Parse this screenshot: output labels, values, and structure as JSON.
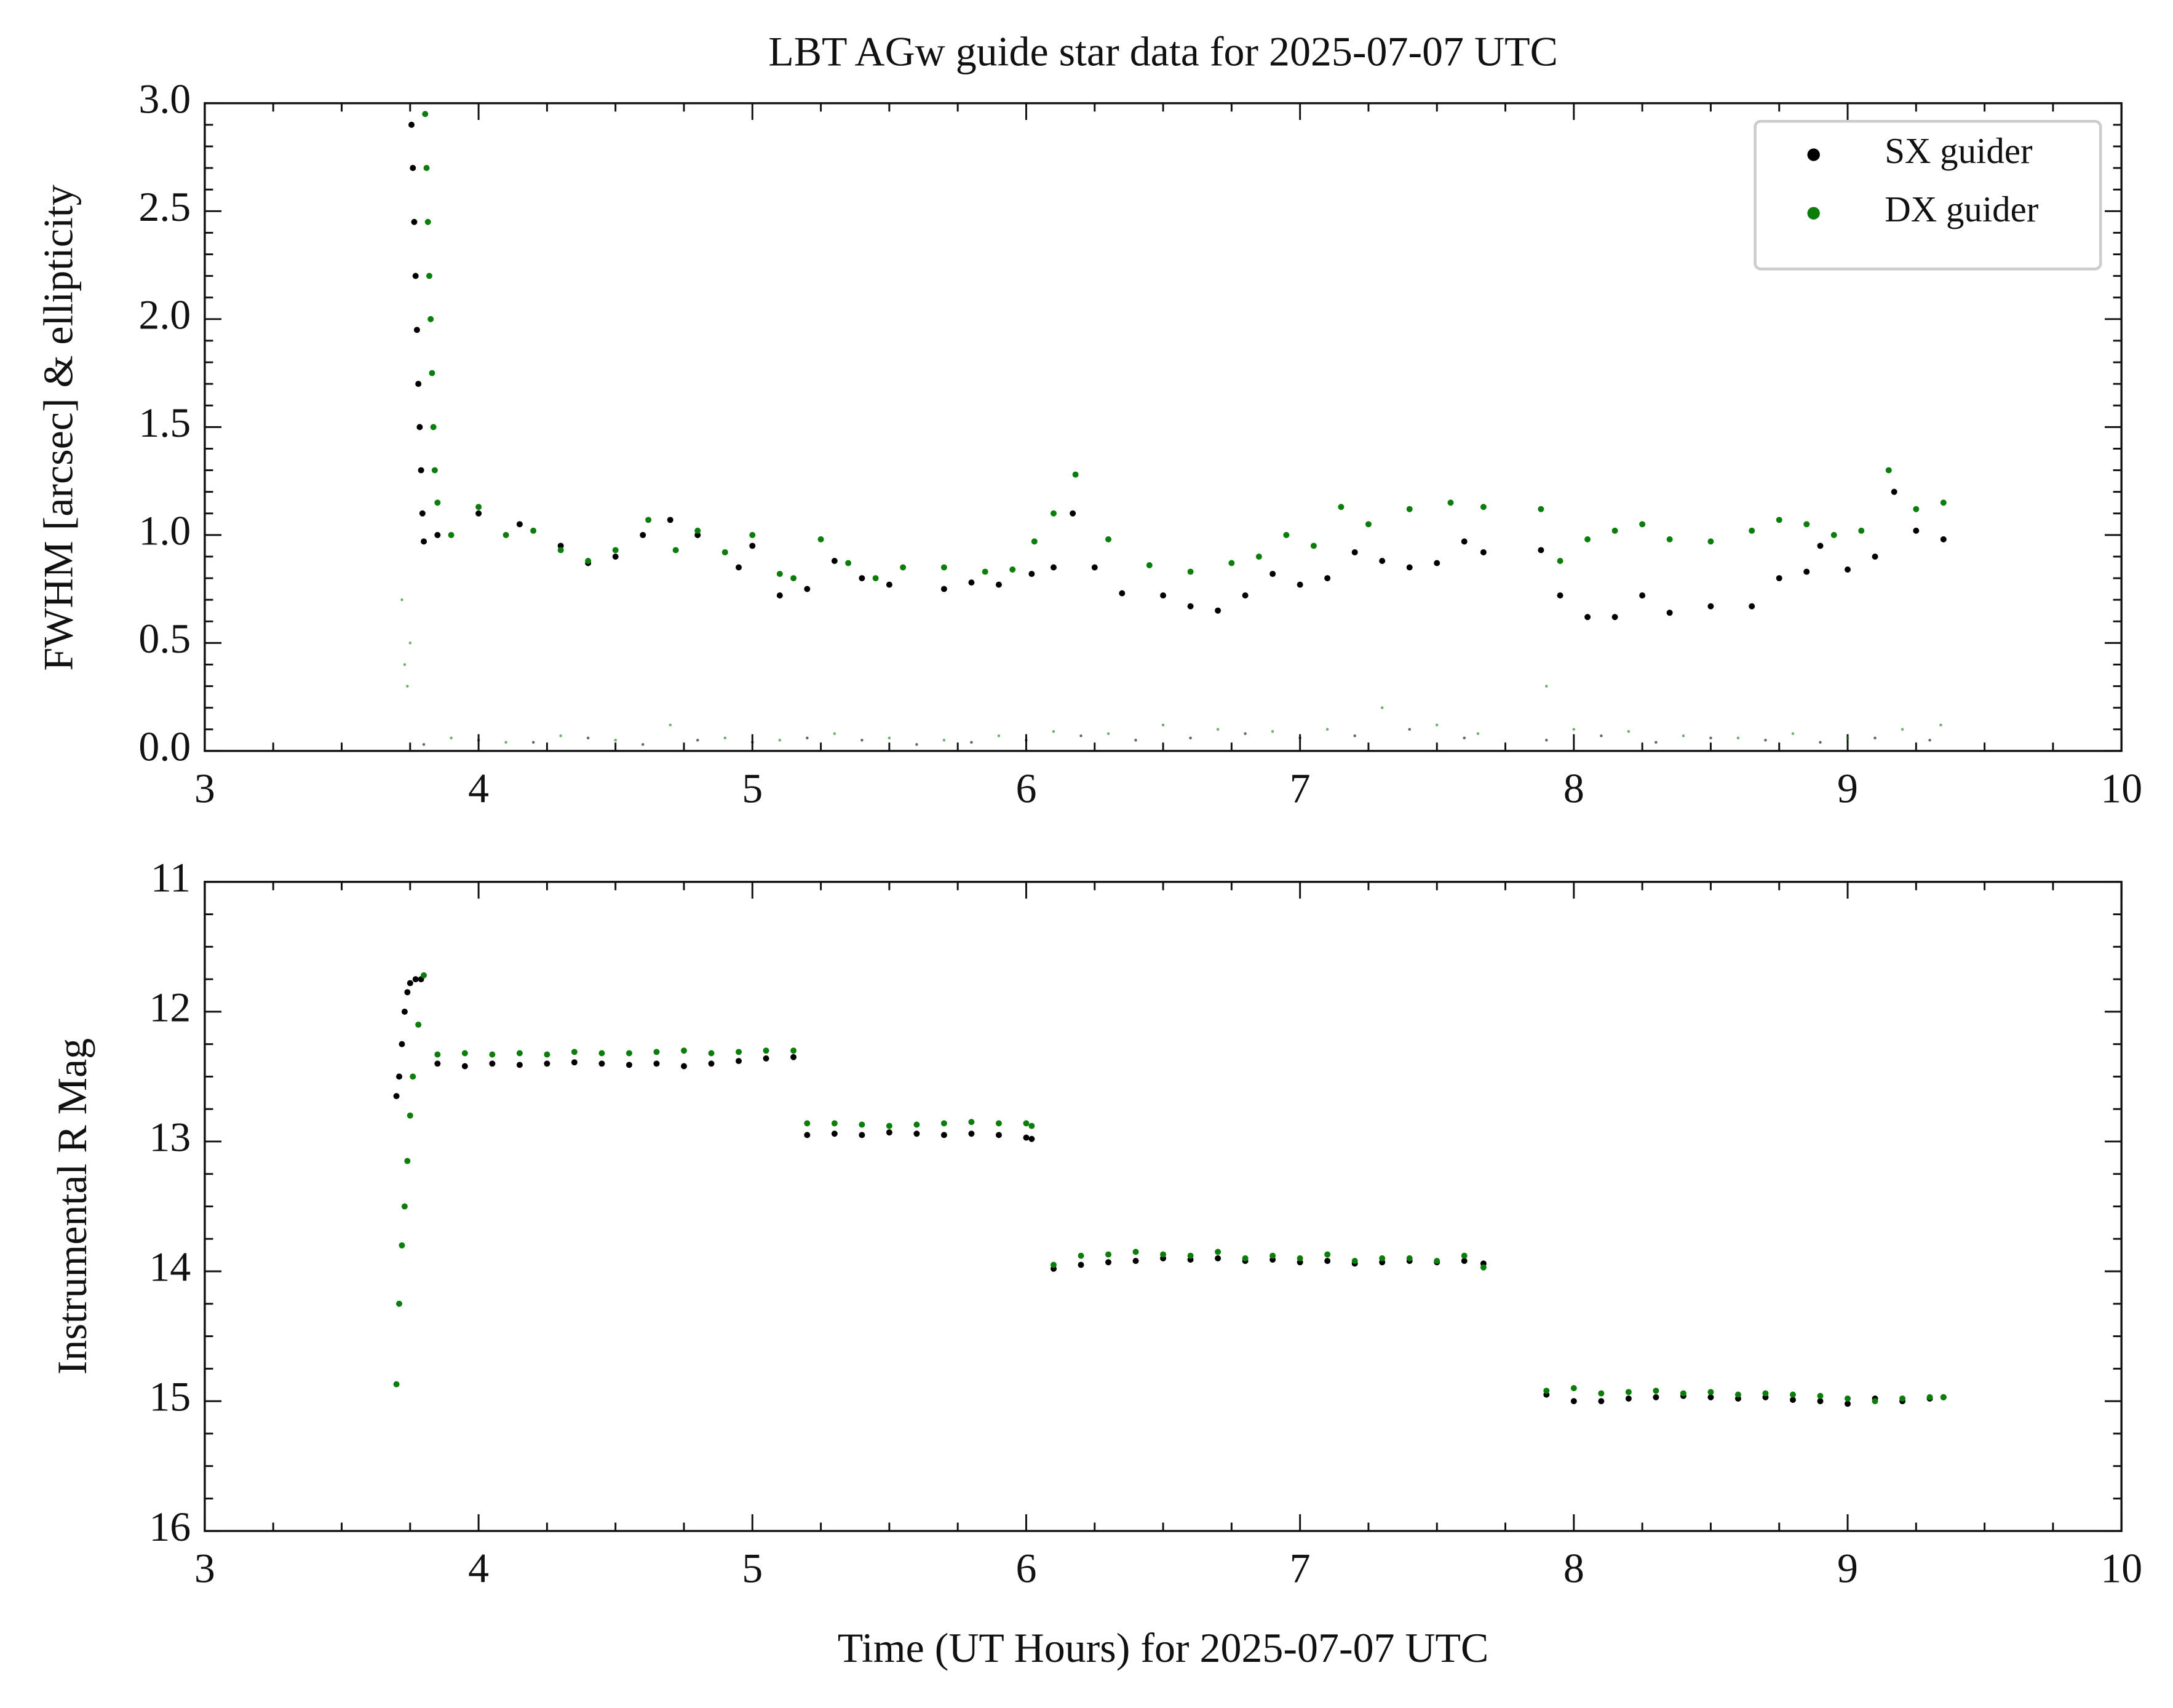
{
  "chart_data": [
    {
      "type": "scatter",
      "title": "LBT AGw guide star data for 2025-07-07 UTC",
      "ylabel": "FWHM [arcsec] & ellipticity",
      "xlim": [
        3,
        10
      ],
      "xticks": [
        3,
        4,
        5,
        6,
        7,
        8,
        9,
        10
      ],
      "ylim": [
        0,
        3
      ],
      "yticks": [
        {
          "value": 0,
          "label": "0.0"
        },
        0.5,
        {
          "value": 1,
          "label": "1.0"
        },
        1.5,
        {
          "value": 2,
          "label": "2.0"
        },
        2.5,
        {
          "value": 3,
          "label": "3.0"
        }
      ],
      "minor_ticks": true,
      "legend": "upper right",
      "series": [
        {
          "name": "SX guider",
          "color": "#000000",
          "marker": "dot",
          "x": [
            3.755,
            3.76,
            3.765,
            3.77,
            3.775,
            3.78,
            3.785,
            3.79,
            3.795,
            3.8,
            3.85,
            4.0,
            4.15,
            4.3,
            4.4,
            4.5,
            4.6,
            4.7,
            4.8,
            4.95,
            5.0,
            5.1,
            5.2,
            5.3,
            5.4,
            5.5,
            5.7,
            5.8,
            5.9,
            6.02,
            6.1,
            6.17,
            6.25,
            6.35,
            6.5,
            6.6,
            6.7,
            6.8,
            6.9,
            7.0,
            7.1,
            7.2,
            7.3,
            7.4,
            7.5,
            7.6,
            7.67,
            7.88,
            7.95,
            8.05,
            8.15,
            8.25,
            8.35,
            8.5,
            8.65,
            8.75,
            8.85,
            8.9,
            9.0,
            9.1,
            9.17,
            9.25,
            9.35
          ],
          "values": [
            2.9,
            2.7,
            2.45,
            2.2,
            1.95,
            1.7,
            1.5,
            1.3,
            1.1,
            0.97,
            1.0,
            1.1,
            1.05,
            0.95,
            0.87,
            0.9,
            1.0,
            1.07,
            1.0,
            0.85,
            0.95,
            0.72,
            0.75,
            0.88,
            0.8,
            0.77,
            0.75,
            0.78,
            0.77,
            0.82,
            0.85,
            1.1,
            0.85,
            0.73,
            0.72,
            0.67,
            0.65,
            0.72,
            0.82,
            0.77,
            0.8,
            0.92,
            0.88,
            0.85,
            0.87,
            0.97,
            0.92,
            0.93,
            0.72,
            0.62,
            0.62,
            0.72,
            0.64,
            0.67,
            0.67,
            0.8,
            0.83,
            0.95,
            0.84,
            0.9,
            1.2,
            1.02,
            0.98
          ]
        },
        {
          "name": "DX guider",
          "color": "#0a7d0a",
          "marker": "dot",
          "x": [
            3.805,
            3.81,
            3.815,
            3.82,
            3.825,
            3.83,
            3.835,
            3.84,
            3.85,
            3.9,
            4.0,
            4.1,
            4.2,
            4.3,
            4.4,
            4.5,
            4.62,
            4.72,
            4.8,
            4.9,
            5.0,
            5.1,
            5.15,
            5.25,
            5.35,
            5.45,
            5.55,
            5.7,
            5.85,
            5.95,
            6.03,
            6.1,
            6.18,
            6.3,
            6.45,
            6.6,
            6.75,
            6.85,
            6.95,
            7.05,
            7.15,
            7.25,
            7.4,
            7.55,
            7.67,
            7.88,
            7.95,
            8.05,
            8.15,
            8.25,
            8.35,
            8.5,
            8.65,
            8.75,
            8.85,
            8.95,
            9.05,
            9.15,
            9.25,
            9.35
          ],
          "values": [
            2.95,
            2.7,
            2.45,
            2.2,
            2.0,
            1.75,
            1.5,
            1.3,
            1.15,
            1.0,
            1.13,
            1.0,
            1.02,
            0.93,
            0.88,
            0.93,
            1.07,
            0.93,
            1.02,
            0.92,
            1.0,
            0.82,
            0.8,
            0.98,
            0.87,
            0.8,
            0.85,
            0.85,
            0.83,
            0.84,
            0.97,
            1.1,
            1.28,
            0.98,
            0.86,
            0.83,
            0.87,
            0.9,
            1.0,
            0.95,
            1.13,
            1.05,
            1.12,
            1.15,
            1.13,
            1.12,
            0.88,
            0.98,
            1.02,
            1.05,
            0.98,
            0.97,
            1.02,
            1.07,
            1.05,
            1.0,
            1.02,
            1.3,
            1.12,
            1.15
          ]
        },
        {
          "color": "#000000",
          "marker": "tiny",
          "x": [
            3.8,
            4.0,
            4.2,
            4.4,
            4.6,
            4.8,
            5.0,
            5.2,
            5.4,
            5.6,
            5.8,
            6.0,
            6.2,
            6.4,
            6.6,
            6.8,
            7.0,
            7.2,
            7.4,
            7.6,
            7.9,
            8.1,
            8.3,
            8.5,
            8.7,
            8.9,
            9.1,
            9.3
          ],
          "values": [
            0.03,
            0.05,
            0.04,
            0.06,
            0.03,
            0.05,
            0.04,
            0.06,
            0.05,
            0.03,
            0.04,
            0.05,
            0.07,
            0.05,
            0.06,
            0.08,
            0.06,
            0.07,
            0.1,
            0.06,
            0.05,
            0.07,
            0.04,
            0.06,
            0.05,
            0.04,
            0.06,
            0.05
          ]
        },
        {
          "color": "#0a7d0a",
          "marker": "tiny",
          "x": [
            3.72,
            3.73,
            3.74,
            3.75,
            3.9,
            4.1,
            4.3,
            4.5,
            4.7,
            4.9,
            5.1,
            5.3,
            5.5,
            5.7,
            5.9,
            6.1,
            6.3,
            6.5,
            6.7,
            6.9,
            7.1,
            7.3,
            7.5,
            7.65,
            7.9,
            8.0,
            8.2,
            8.4,
            8.6,
            8.8,
            9.0,
            9.2,
            9.34
          ],
          "values": [
            0.7,
            0.4,
            0.3,
            0.5,
            0.06,
            0.04,
            0.07,
            0.05,
            0.12,
            0.06,
            0.05,
            0.08,
            0.06,
            0.05,
            0.07,
            0.09,
            0.08,
            0.12,
            0.1,
            0.09,
            0.1,
            0.2,
            0.12,
            0.08,
            0.3,
            0.1,
            0.09,
            0.07,
            0.06,
            0.08,
            0.06,
            0.1,
            0.12
          ]
        }
      ]
    },
    {
      "type": "scatter",
      "xlabel": "Time (UT Hours) for 2025-07-07 UTC",
      "ylabel": "Instrumental R Mag",
      "xlim": [
        3,
        10
      ],
      "xticks": [
        3,
        4,
        5,
        6,
        7,
        8,
        9,
        10
      ],
      "ylim": [
        11,
        16
      ],
      "yticks": [
        11,
        12,
        13,
        14,
        15,
        16
      ],
      "y_inverted": true,
      "minor_ticks": true,
      "series": [
        {
          "name": "SX guider",
          "color": "#000000",
          "marker": "dot",
          "x": [
            3.7,
            3.71,
            3.72,
            3.73,
            3.74,
            3.75,
            3.77,
            3.79,
            3.85,
            3.95,
            4.05,
            4.15,
            4.25,
            4.35,
            4.45,
            4.55,
            4.65,
            4.75,
            4.85,
            4.95,
            5.05,
            5.15,
            5.2,
            5.3,
            5.4,
            5.5,
            5.6,
            5.7,
            5.8,
            5.9,
            6.0,
            6.02,
            6.1,
            6.2,
            6.3,
            6.4,
            6.5,
            6.6,
            6.7,
            6.8,
            6.9,
            7.0,
            7.1,
            7.2,
            7.3,
            7.4,
            7.5,
            7.6,
            7.67,
            7.9,
            8.0,
            8.1,
            8.2,
            8.3,
            8.4,
            8.5,
            8.6,
            8.7,
            8.8,
            8.9,
            9.0,
            9.1,
            9.2,
            9.3,
            9.35
          ],
          "values": [
            12.65,
            12.5,
            12.25,
            12.0,
            11.85,
            11.78,
            11.75,
            11.75,
            12.4,
            12.42,
            12.4,
            12.41,
            12.4,
            12.39,
            12.4,
            12.41,
            12.4,
            12.42,
            12.4,
            12.38,
            12.36,
            12.35,
            12.95,
            12.94,
            12.95,
            12.93,
            12.94,
            12.95,
            12.94,
            12.95,
            12.97,
            12.98,
            13.98,
            13.95,
            13.93,
            13.92,
            13.9,
            13.91,
            13.9,
            13.92,
            13.91,
            13.93,
            13.92,
            13.94,
            13.93,
            13.92,
            13.93,
            13.92,
            13.94,
            14.95,
            15.0,
            15.0,
            14.98,
            14.97,
            14.96,
            14.97,
            14.98,
            14.97,
            14.99,
            15.0,
            15.02,
            14.98,
            15.0,
            14.98,
            14.97
          ]
        },
        {
          "name": "DX guider",
          "color": "#0a7d0a",
          "marker": "dot",
          "x": [
            3.7,
            3.71,
            3.72,
            3.73,
            3.74,
            3.75,
            3.76,
            3.78,
            3.8,
            3.85,
            3.95,
            4.05,
            4.15,
            4.25,
            4.35,
            4.45,
            4.55,
            4.65,
            4.75,
            4.85,
            4.95,
            5.05,
            5.15,
            5.2,
            5.3,
            5.4,
            5.5,
            5.6,
            5.7,
            5.8,
            5.9,
            6.0,
            6.02,
            6.1,
            6.2,
            6.3,
            6.4,
            6.5,
            6.6,
            6.7,
            6.8,
            6.9,
            7.0,
            7.1,
            7.2,
            7.3,
            7.4,
            7.5,
            7.6,
            7.67,
            7.9,
            8.0,
            8.1,
            8.2,
            8.3,
            8.4,
            8.5,
            8.6,
            8.7,
            8.8,
            8.9,
            9.0,
            9.1,
            9.2,
            9.3,
            9.35
          ],
          "values": [
            14.87,
            14.25,
            13.8,
            13.5,
            13.15,
            12.8,
            12.5,
            12.1,
            11.72,
            12.33,
            12.32,
            12.33,
            12.32,
            12.33,
            12.31,
            12.32,
            12.32,
            12.31,
            12.3,
            12.32,
            12.31,
            12.3,
            12.3,
            12.86,
            12.86,
            12.87,
            12.88,
            12.87,
            12.86,
            12.85,
            12.86,
            12.86,
            12.88,
            13.95,
            13.88,
            13.87,
            13.85,
            13.87,
            13.88,
            13.85,
            13.9,
            13.88,
            13.9,
            13.87,
            13.92,
            13.9,
            13.9,
            13.92,
            13.88,
            13.97,
            14.92,
            14.9,
            14.94,
            14.93,
            14.92,
            14.94,
            14.93,
            14.95,
            14.94,
            14.95,
            14.96,
            14.98,
            15.0,
            14.98,
            14.97,
            14.97
          ]
        }
      ]
    }
  ]
}
